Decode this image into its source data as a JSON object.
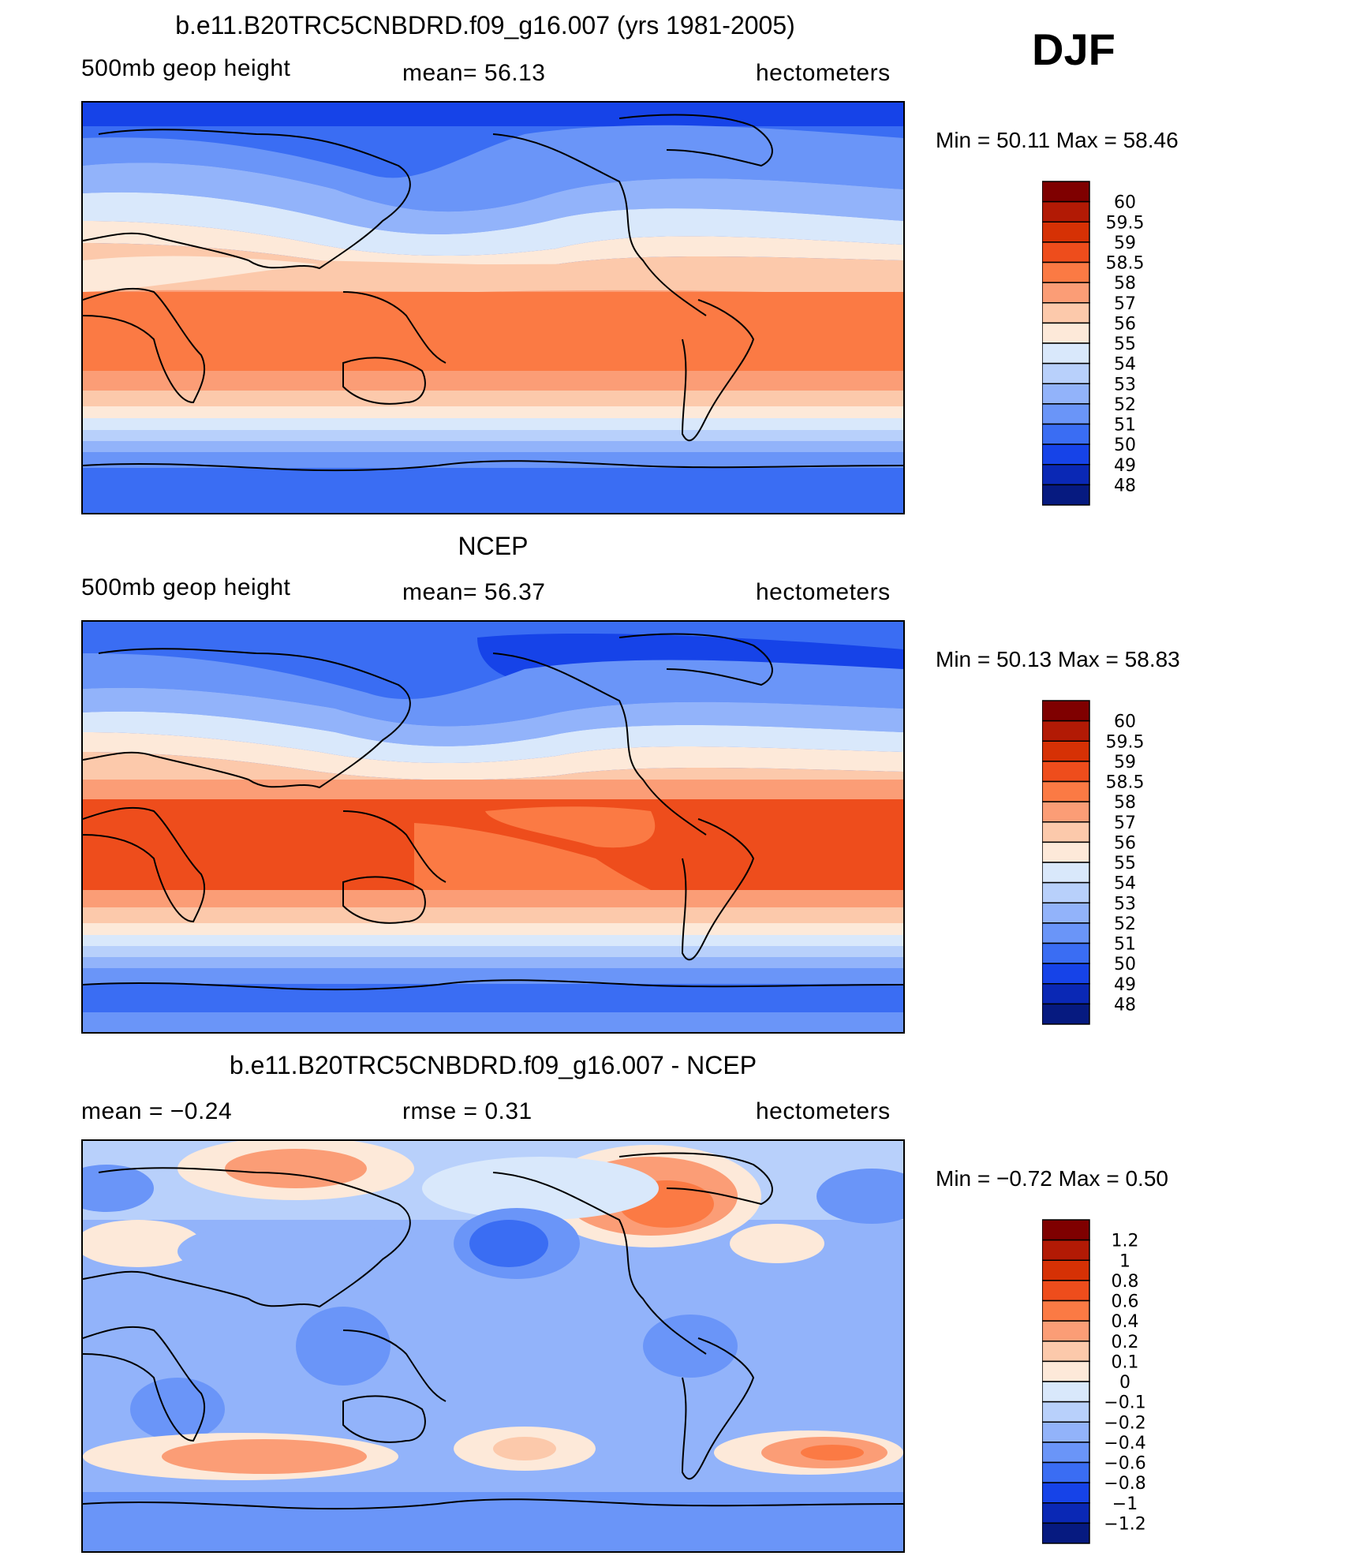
{
  "season": "DJF",
  "panels": [
    {
      "title": "b.e11.B20TRC5CNBDRD.f09_g16.007 (yrs 1981-2005)",
      "left_label": "500mb geop height",
      "center_label": "mean=  56.13",
      "right_label": "hectometers",
      "min_max": "Min =   50.11  Max =   58.46"
    },
    {
      "title": "NCEP",
      "left_label": "500mb geop height",
      "center_label": "mean=  56.37",
      "right_label": "hectometers",
      "min_max": "Min =   50.13  Max =   58.83"
    },
    {
      "title": "b.e11.B20TRC5CNBDRD.f09_g16.007 - NCEP",
      "left_label": "mean =   −0.24",
      "center_label": "rmse =    0.31",
      "right_label": "hectometers",
      "min_max": "Min =   −0.72  Max =    0.50"
    }
  ],
  "chart_data": [
    {
      "type": "heatmap",
      "title": "b.e11.B20TRC5CNBDRD.f09_g16.007 (yrs 1981-2005)",
      "variable": "500mb geop height",
      "units": "hectometers",
      "mean": 56.13,
      "min": 50.11,
      "max": 58.46,
      "colorbar_levels": [
        "60",
        "59.5",
        "59",
        "58.5",
        "58",
        "57",
        "56",
        "55",
        "54",
        "53",
        "52",
        "51",
        "50",
        "49",
        "48"
      ],
      "colorbar_colors": [
        "#7f0000",
        "#b21a05",
        "#d63105",
        "#ee4d1c",
        "#fb7a44",
        "#fb9d76",
        "#fcc9ab",
        "#fde9d9",
        "#d9e8fb",
        "#b8d0fb",
        "#92b3fa",
        "#6a95f8",
        "#3a6df3",
        "#1643e8",
        "#0a28b5",
        "#061a80"
      ]
    },
    {
      "type": "heatmap",
      "title": "NCEP",
      "variable": "500mb geop height",
      "units": "hectometers",
      "mean": 56.37,
      "min": 50.13,
      "max": 58.83,
      "colorbar_levels": [
        "60",
        "59.5",
        "59",
        "58.5",
        "58",
        "57",
        "56",
        "55",
        "54",
        "53",
        "52",
        "51",
        "50",
        "49",
        "48"
      ],
      "colorbar_colors": [
        "#7f0000",
        "#b21a05",
        "#d63105",
        "#ee4d1c",
        "#fb7a44",
        "#fb9d76",
        "#fcc9ab",
        "#fde9d9",
        "#d9e8fb",
        "#b8d0fb",
        "#92b3fa",
        "#6a95f8",
        "#3a6df3",
        "#1643e8",
        "#0a28b5",
        "#061a80"
      ]
    },
    {
      "type": "heatmap",
      "title": "b.e11.B20TRC5CNBDRD.f09_g16.007 - NCEP",
      "units": "hectometers",
      "mean": -0.24,
      "rmse": 0.31,
      "min": -0.72,
      "max": 0.5,
      "colorbar_levels": [
        "1.2",
        "1",
        "0.8",
        "0.6",
        "0.4",
        "0.2",
        "0.1",
        "0",
        "−0.1",
        "−0.2",
        "−0.4",
        "−0.6",
        "−0.8",
        "−1",
        "−1.2"
      ],
      "colorbar_colors": [
        "#7f0000",
        "#b21a05",
        "#d63105",
        "#ee4d1c",
        "#fb7a44",
        "#fb9d76",
        "#fcc9ab",
        "#fde9d9",
        "#d9e8fb",
        "#b8d0fb",
        "#92b3fa",
        "#6a95f8",
        "#3a6df3",
        "#1643e8",
        "#0a28b5",
        "#061a80"
      ]
    }
  ]
}
